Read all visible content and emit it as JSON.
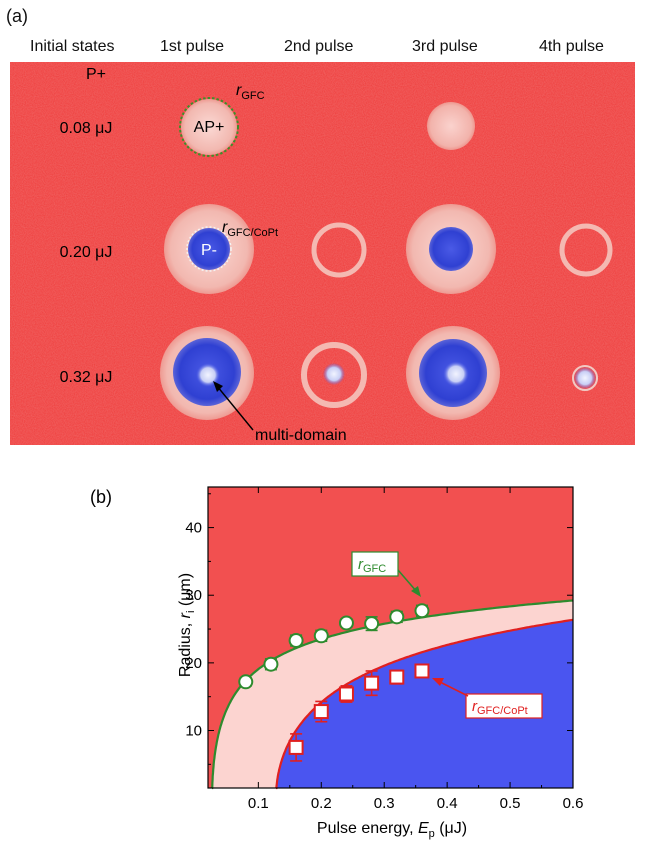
{
  "panel_a": {
    "label": "(a)",
    "columns": [
      "Initial states",
      "1st pulse",
      "2nd pulse",
      "3rd pulse",
      "4th pulse"
    ],
    "initial_state": "P+",
    "rows": [
      "0.08 μJ",
      "0.20 μJ",
      "0.32 μJ"
    ],
    "annotations": {
      "r_gfc": "r",
      "r_gfc_sub": "GFC",
      "r_gfc_copt": "r",
      "r_gfc_copt_sub": "GFC/CoPt",
      "ap_plus": "AP+",
      "p_minus": "P-",
      "multi_domain": "multi-domain"
    },
    "colors": {
      "background": "#ef3a3a",
      "light": "#f5c8c2",
      "blue": "#3345d8"
    }
  },
  "panel_b": {
    "label": "(b)",
    "ylabel_prefix": "Radius, ",
    "ylabel_var": "r",
    "ylabel_sub": "i",
    "ylabel_unit": " (μm)",
    "xlabel_prefix": "Pulse energy, ",
    "xlabel_var": "E",
    "xlabel_sub": "p",
    "xlabel_unit": " (μJ)",
    "legend_gfc": "r",
    "legend_gfc_sub": "GFC",
    "legend_copt": "r",
    "legend_copt_sub": "GFC/CoPt"
  },
  "chart_data": {
    "type": "scatter",
    "xlim": [
      0.02,
      0.6
    ],
    "ylim": [
      1.5,
      46
    ],
    "xticks": [
      0.1,
      0.2,
      0.3,
      0.4,
      0.5,
      0.6
    ],
    "yticks": [
      10,
      20,
      30,
      40
    ],
    "grid": false,
    "series": [
      {
        "name": "r_GFC",
        "marker": "circle",
        "color": "#2e8b2e",
        "x": [
          0.08,
          0.12,
          0.16,
          0.2,
          0.24,
          0.28,
          0.32,
          0.36
        ],
        "y": [
          17.2,
          19.8,
          23.3,
          24.0,
          25.9,
          25.8,
          26.8,
          27.7
        ],
        "yerr": [
          0.6,
          0.8,
          0.8,
          0.8,
          0.6,
          1.0,
          0.8,
          0.8
        ]
      },
      {
        "name": "r_GFC/CoPt",
        "marker": "square",
        "color": "#e02020",
        "x": [
          0.16,
          0.2,
          0.24,
          0.28,
          0.32,
          0.36
        ],
        "y": [
          7.5,
          12.8,
          15.4,
          17.0,
          17.9,
          18.8
        ],
        "yerr": [
          2.0,
          1.5,
          1.2,
          1.8,
          1.0,
          0.8
        ]
      }
    ],
    "fit_curves": {
      "gfc": {
        "E0": 0.0265,
        "w": 11.7
      },
      "copt": {
        "E0": 0.128,
        "w": 15.0
      }
    },
    "regions": {
      "top": "#f25050",
      "middle": "#fcd4d0",
      "bottom": "#4a55f0"
    }
  }
}
